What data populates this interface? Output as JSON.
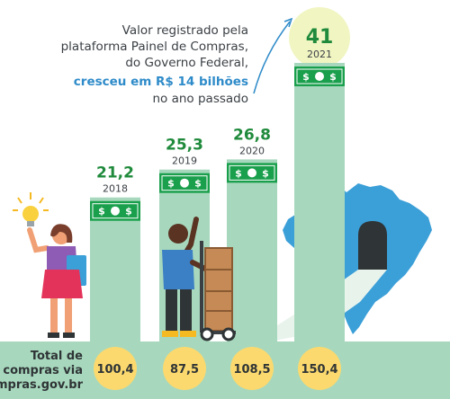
{
  "annotation": {
    "lines": [
      "Valor registrado pela",
      "plataforma Painel de Compras,",
      "do Governo Federal,"
    ],
    "highlight": "cresceu em R$ 14 bilhões",
    "last_line": "no ano passado"
  },
  "bottom_label": [
    "Total de",
    "compras via",
    "compras.gov.br"
  ],
  "icons": [
    "money-bill-icon",
    "light-bulb-icon",
    "brazil-map-icon",
    "woman-figure",
    "man-with-hand-truck-figure"
  ],
  "colors": {
    "bar": "#a7d8bd",
    "bill": "#1a9f4c",
    "value_text": "#1f8a3b",
    "highlight_text": "#2e8bc9",
    "circle": "#fbd96e",
    "circle_highlight": "#f1f5c2",
    "map": "#3b9fd8",
    "band": "#a7d8bd"
  },
  "chart_data": {
    "type": "bar",
    "categories": [
      "2018",
      "2019",
      "2020",
      "2021"
    ],
    "values": [
      21.2,
      25.3,
      26.8,
      41
    ],
    "value_labels": [
      "21,2",
      "25,3",
      "26,8",
      "41"
    ],
    "totals": [
      "100,4",
      "87,5",
      "108,5",
      "150,4"
    ],
    "title": "",
    "xlabel": "",
    "ylabel": ""
  }
}
